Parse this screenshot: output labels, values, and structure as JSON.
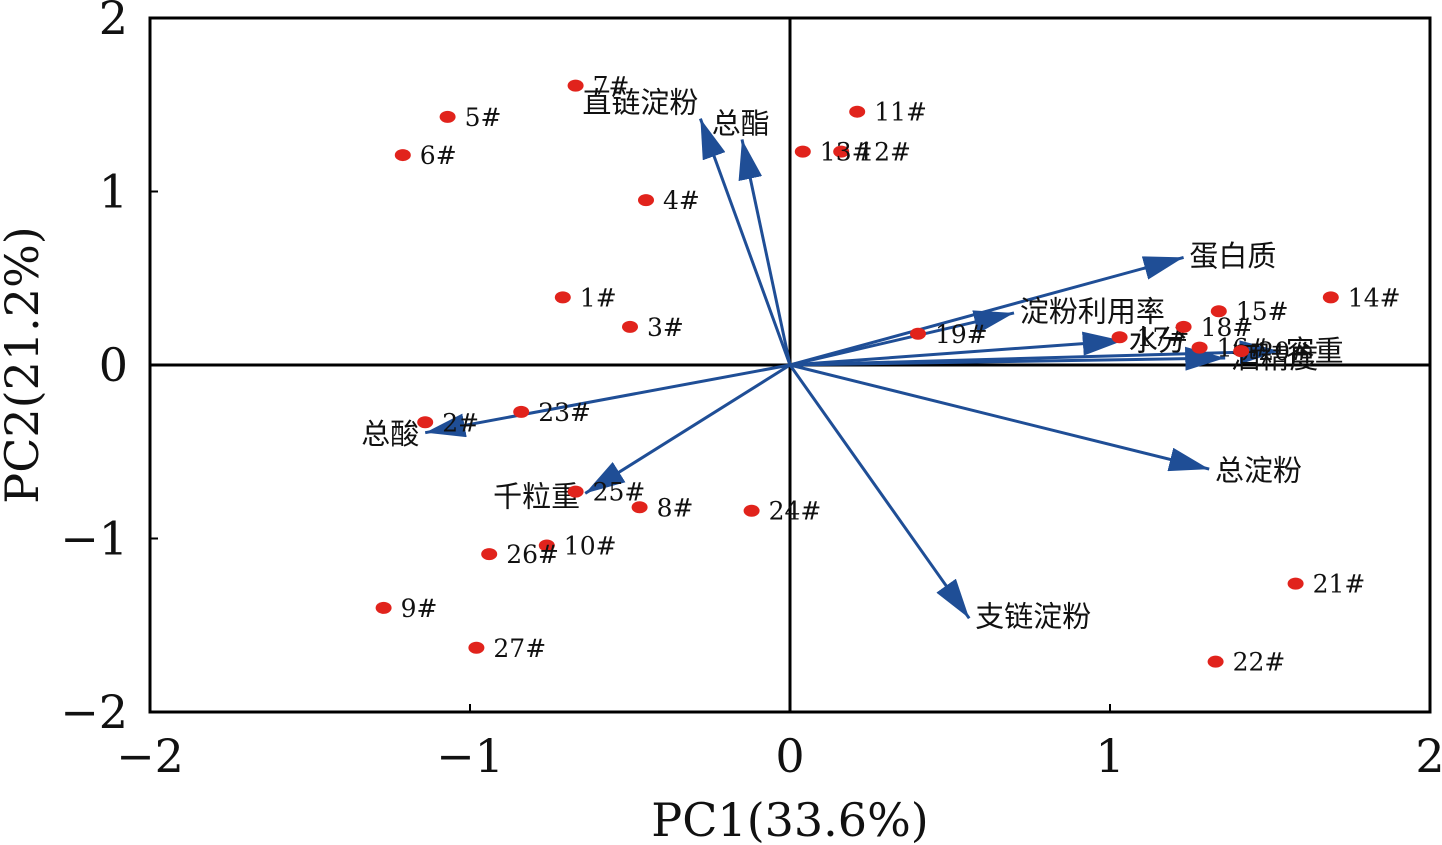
{
  "chart_data": {
    "type": "scatter",
    "title": "",
    "xlabel": "PC1(33.6%)",
    "ylabel": "PC2(21.2%)",
    "xlim": [
      -2,
      2
    ],
    "ylim": [
      -2,
      2
    ],
    "xticks": [
      "−2",
      "−1",
      "0",
      "1",
      "2"
    ],
    "yticks": [
      "2",
      "1",
      "0",
      "−1",
      "−2"
    ],
    "grid": false,
    "zero_lines": true,
    "colors": {
      "points": "#e1231c",
      "vectors": "#1f4e96",
      "axes": "#000000"
    },
    "points": [
      {
        "label": "1#",
        "x": -0.71,
        "y": 0.39
      },
      {
        "label": "2#",
        "x": -1.14,
        "y": -0.33
      },
      {
        "label": "3#",
        "x": -0.5,
        "y": 0.22
      },
      {
        "label": "4#",
        "x": -0.45,
        "y": 0.95
      },
      {
        "label": "5#",
        "x": -1.07,
        "y": 1.43
      },
      {
        "label": "6#",
        "x": -1.21,
        "y": 1.21
      },
      {
        "label": "7#",
        "x": -0.67,
        "y": 1.61
      },
      {
        "label": "8#",
        "x": -0.47,
        "y": -0.82
      },
      {
        "label": "9#",
        "x": -1.27,
        "y": -1.4
      },
      {
        "label": "10#",
        "x": -0.76,
        "y": -1.04
      },
      {
        "label": "11#",
        "x": 0.21,
        "y": 1.46
      },
      {
        "label": "12#",
        "x": 0.16,
        "y": 1.23
      },
      {
        "label": "13#",
        "x": 0.04,
        "y": 1.23
      },
      {
        "label": "14#",
        "x": 1.69,
        "y": 0.39
      },
      {
        "label": "15#",
        "x": 1.34,
        "y": 0.31
      },
      {
        "label": "16#",
        "x": 1.28,
        "y": 0.1
      },
      {
        "label": "17#",
        "x": 1.03,
        "y": 0.16
      },
      {
        "label": "18#",
        "x": 1.23,
        "y": 0.22
      },
      {
        "label": "19#",
        "x": 0.4,
        "y": 0.18
      },
      {
        "label": "20#",
        "x": 1.41,
        "y": 0.08
      },
      {
        "label": "21#",
        "x": 1.58,
        "y": -1.26
      },
      {
        "label": "22#",
        "x": 1.33,
        "y": -1.71
      },
      {
        "label": "23#",
        "x": -0.84,
        "y": -0.27
      },
      {
        "label": "24#",
        "x": -0.12,
        "y": -0.84
      },
      {
        "label": "25#",
        "x": -0.67,
        "y": -0.73
      },
      {
        "label": "26#",
        "x": -0.94,
        "y": -1.09
      },
      {
        "label": "27#",
        "x": -0.98,
        "y": -1.63
      }
    ],
    "vectors": [
      {
        "label": "直链淀粉",
        "x": -0.28,
        "y": 1.42
      },
      {
        "label": "总酯",
        "x": -0.15,
        "y": 1.3
      },
      {
        "label": "蛋白质",
        "x": 1.23,
        "y": 0.62
      },
      {
        "label": "淀粉利用率",
        "x": 0.7,
        "y": 0.3
      },
      {
        "label": "水分",
        "x": 1.04,
        "y": 0.14
      },
      {
        "label": "容重",
        "x": 1.53,
        "y": 0.08
      },
      {
        "label": "酒精度",
        "x": 1.36,
        "y": 0.04
      },
      {
        "label": "总淀粉",
        "x": 1.31,
        "y": -0.6
      },
      {
        "label": "支链淀粉",
        "x": 0.56,
        "y": -1.46
      },
      {
        "label": "总酸",
        "x": -1.14,
        "y": -0.39
      },
      {
        "label": "千粒重",
        "x": -0.64,
        "y": -0.74
      }
    ]
  }
}
